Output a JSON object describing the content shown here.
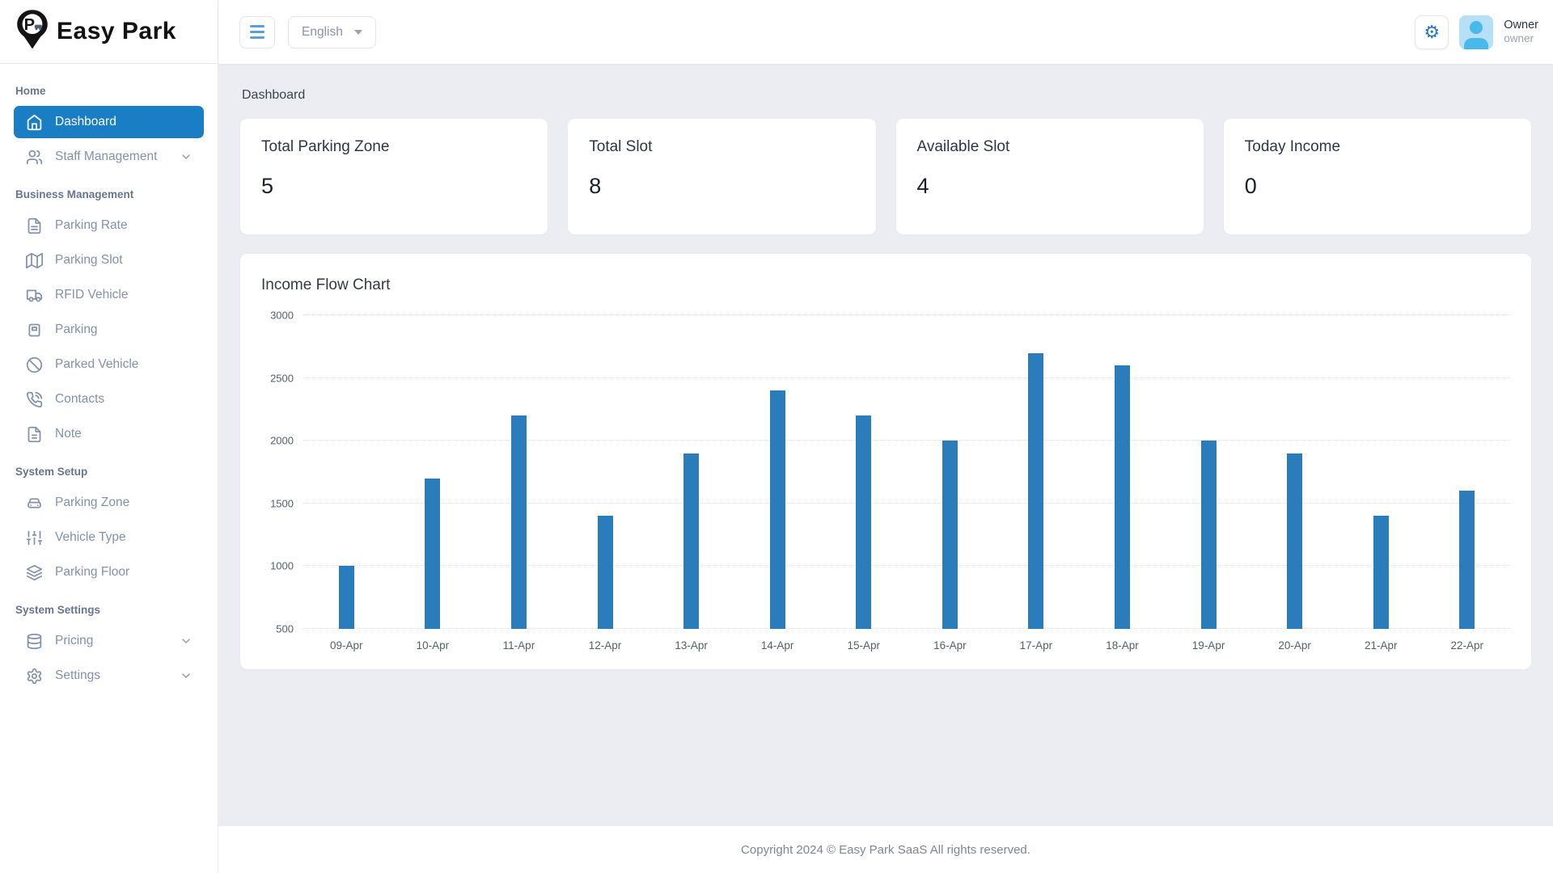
{
  "app": {
    "name": "Easy Park",
    "logo_letter": "P"
  },
  "topbar": {
    "language": "English",
    "user": {
      "name": "Owner",
      "role": "owner"
    }
  },
  "sidebar": {
    "sections": [
      {
        "title": "Home",
        "items": [
          {
            "label": "Dashboard",
            "icon": "home-icon",
            "active": true,
            "chevron": false
          },
          {
            "label": "Staff Management",
            "icon": "users-icon",
            "active": false,
            "chevron": true
          }
        ]
      },
      {
        "title": "Business Management",
        "items": [
          {
            "label": "Parking Rate",
            "icon": "file-text-icon",
            "active": false,
            "chevron": false
          },
          {
            "label": "Parking Slot",
            "icon": "map-icon",
            "active": false,
            "chevron": false
          },
          {
            "label": "RFID Vehicle",
            "icon": "truck-icon",
            "active": false,
            "chevron": false
          },
          {
            "label": "Parking",
            "icon": "meter-icon",
            "active": false,
            "chevron": false
          },
          {
            "label": "Parked Vehicle",
            "icon": "ban-icon",
            "active": false,
            "chevron": false
          },
          {
            "label": "Contacts",
            "icon": "phone-icon",
            "active": false,
            "chevron": false
          },
          {
            "label": "Note",
            "icon": "note-icon",
            "active": false,
            "chevron": false
          }
        ]
      },
      {
        "title": "System Setup",
        "items": [
          {
            "label": "Parking Zone",
            "icon": "car-icon",
            "active": false,
            "chevron": false
          },
          {
            "label": "Vehicle Type",
            "icon": "sliders-icon",
            "active": false,
            "chevron": false
          },
          {
            "label": "Parking Floor",
            "icon": "layers-icon",
            "active": false,
            "chevron": false
          }
        ]
      },
      {
        "title": "System Settings",
        "items": [
          {
            "label": "Pricing",
            "icon": "database-icon",
            "active": false,
            "chevron": true
          },
          {
            "label": "Settings",
            "icon": "gear-icon",
            "active": false,
            "chevron": true
          }
        ]
      }
    ]
  },
  "page": {
    "breadcrumb": "Dashboard"
  },
  "stats": [
    {
      "label": "Total Parking Zone",
      "value": "5"
    },
    {
      "label": "Total Slot",
      "value": "8"
    },
    {
      "label": "Available Slot",
      "value": "4"
    },
    {
      "label": "Today Income",
      "value": "0"
    }
  ],
  "chart_data": {
    "type": "bar",
    "title": "Income Flow Chart",
    "categories": [
      "09-Apr",
      "10-Apr",
      "11-Apr",
      "12-Apr",
      "13-Apr",
      "14-Apr",
      "15-Apr",
      "16-Apr",
      "17-Apr",
      "18-Apr",
      "19-Apr",
      "20-Apr",
      "21-Apr",
      "22-Apr"
    ],
    "values": [
      1000,
      1700,
      2200,
      1400,
      1900,
      2400,
      2200,
      2000,
      2700,
      2600,
      2000,
      1900,
      1400,
      1600
    ],
    "xlabel": "",
    "ylabel": "",
    "ylim": [
      500,
      3000
    ],
    "yticks": [
      500,
      1000,
      1500,
      2000,
      2500,
      3000
    ],
    "bar_color": "#2b7cba",
    "grid": "horizontal-dotted",
    "legend": "none"
  },
  "footer": {
    "text": "Copyright 2024 © Easy Park SaaS All rights reserved."
  },
  "colors": {
    "active_item": "#1a7ec4",
    "bar": "#2b7cba",
    "content_bg": "#ecedf2",
    "sidebar_text": "#8292ab",
    "hamburger": "#5ba0d8",
    "gear": "#2b77c0",
    "avatar_bg": "#b5e0f5",
    "avatar_person": "#49b8ea"
  }
}
